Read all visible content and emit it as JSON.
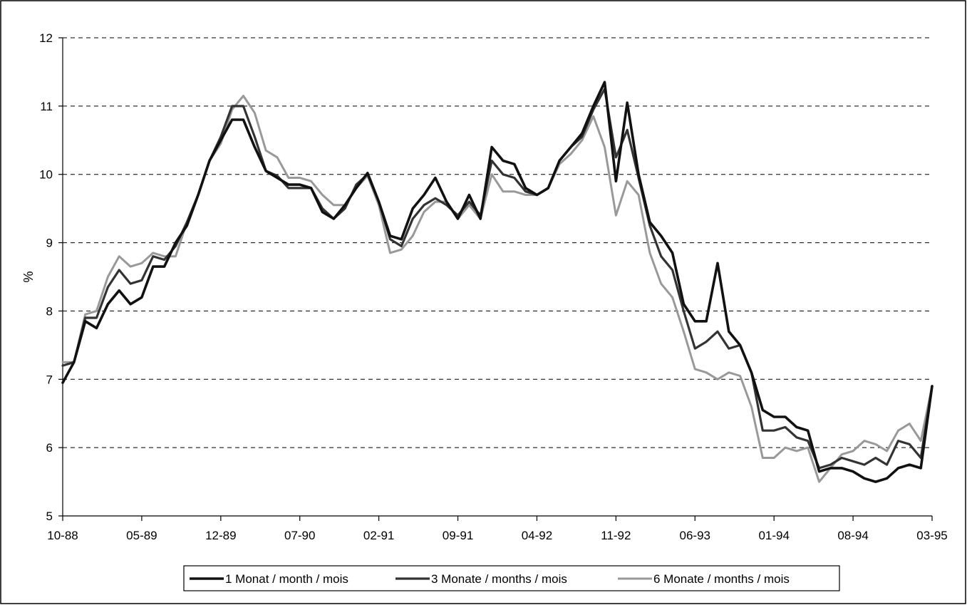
{
  "chart_data": {
    "type": "line",
    "title": "",
    "xlabel": "",
    "ylabel": "%",
    "ylim": [
      5,
      12
    ],
    "yticks": [
      5,
      6,
      7,
      8,
      9,
      10,
      11,
      12
    ],
    "grid": "horizontal dashed",
    "legend_position": "bottom-center",
    "x": [
      "10-88",
      "11-88",
      "12-88",
      "01-89",
      "02-89",
      "03-89",
      "04-89",
      "05-89",
      "06-89",
      "07-89",
      "08-89",
      "09-89",
      "10-89",
      "11-89",
      "12-89",
      "01-90",
      "02-90",
      "03-90",
      "04-90",
      "05-90",
      "06-90",
      "07-90",
      "08-90",
      "09-90",
      "10-90",
      "11-90",
      "12-90",
      "01-91",
      "02-91",
      "03-91",
      "04-91",
      "05-91",
      "06-91",
      "07-91",
      "08-91",
      "09-91",
      "10-91",
      "11-91",
      "12-91",
      "01-92",
      "02-92",
      "03-92",
      "04-92",
      "05-92",
      "06-92",
      "07-92",
      "08-92",
      "09-92",
      "10-92",
      "11-92",
      "12-92",
      "01-93",
      "02-93",
      "03-93",
      "04-93",
      "05-93",
      "06-93",
      "07-93",
      "08-93",
      "09-93",
      "10-93",
      "11-93",
      "12-93",
      "01-94",
      "02-94",
      "03-94",
      "04-94",
      "05-94",
      "06-94",
      "07-94",
      "08-94",
      "09-94",
      "10-94",
      "11-94",
      "12-94",
      "01-95",
      "02-95",
      "03-95"
    ],
    "x_tick_labels": [
      "10-88",
      "05-89",
      "12-89",
      "07-90",
      "02-91",
      "09-91",
      "04-92",
      "11-92",
      "06-93",
      "01-94",
      "08-94",
      "03-95"
    ],
    "series": [
      {
        "name": "1 Monat / month / mois",
        "color": "#111111",
        "values": [
          6.95,
          7.25,
          7.85,
          7.75,
          8.1,
          8.3,
          8.1,
          8.2,
          8.65,
          8.65,
          9.0,
          9.25,
          9.7,
          10.2,
          10.5,
          10.8,
          10.8,
          10.4,
          10.05,
          9.95,
          9.85,
          9.85,
          9.8,
          9.45,
          9.35,
          9.55,
          9.8,
          10.02,
          9.6,
          9.1,
          9.05,
          9.5,
          9.7,
          9.95,
          9.6,
          9.35,
          9.7,
          9.35,
          10.4,
          10.2,
          10.15,
          9.8,
          9.7,
          9.8,
          10.2,
          10.4,
          10.6,
          11.0,
          11.35,
          9.9,
          11.05,
          10.0,
          9.3,
          9.1,
          8.85,
          8.1,
          7.85,
          7.85,
          8.7,
          7.7,
          7.5,
          7.1,
          6.55,
          6.45,
          6.45,
          6.3,
          6.25,
          5.65,
          5.7,
          5.7,
          5.65,
          5.55,
          5.5,
          5.55,
          5.7,
          5.75,
          5.7,
          6.9
        ]
      },
      {
        "name": "3 Monate / months / mois",
        "color": "#333333",
        "values": [
          7.2,
          7.25,
          7.9,
          7.9,
          8.35,
          8.6,
          8.4,
          8.45,
          8.8,
          8.75,
          8.95,
          9.3,
          9.7,
          10.2,
          10.55,
          11.0,
          11.0,
          10.55,
          10.05,
          9.98,
          9.8,
          9.8,
          9.8,
          9.5,
          9.35,
          9.5,
          9.85,
          10.0,
          9.6,
          9.05,
          8.95,
          9.35,
          9.55,
          9.65,
          9.55,
          9.4,
          9.6,
          9.4,
          10.2,
          10.0,
          9.95,
          9.75,
          9.7,
          9.8,
          10.2,
          10.4,
          10.55,
          10.95,
          11.25,
          10.25,
          10.65,
          9.95,
          9.25,
          8.8,
          8.6,
          8.0,
          7.45,
          7.55,
          7.7,
          7.45,
          7.5,
          7.1,
          6.25,
          6.25,
          6.3,
          6.15,
          6.1,
          5.7,
          5.75,
          5.85,
          5.8,
          5.75,
          5.85,
          5.75,
          6.1,
          6.05,
          5.85,
          6.9
        ]
      },
      {
        "name": "6 Monate / months / mois",
        "color": "#999999",
        "values": [
          7.25,
          7.25,
          7.95,
          8.0,
          8.5,
          8.8,
          8.65,
          8.7,
          8.85,
          8.8,
          8.8,
          9.3,
          9.7,
          10.2,
          10.45,
          10.95,
          11.15,
          10.9,
          10.35,
          10.25,
          9.95,
          9.95,
          9.9,
          9.7,
          9.55,
          9.55,
          9.8,
          9.98,
          9.55,
          8.85,
          8.9,
          9.1,
          9.45,
          9.6,
          9.6,
          9.35,
          9.55,
          9.35,
          10.0,
          9.75,
          9.75,
          9.7,
          9.7,
          9.8,
          10.15,
          10.3,
          10.5,
          10.85,
          10.4,
          9.4,
          9.9,
          9.7,
          8.85,
          8.4,
          8.2,
          7.7,
          7.15,
          7.1,
          7.0,
          7.1,
          7.05,
          6.6,
          5.85,
          5.85,
          6.0,
          5.95,
          6.0,
          5.5,
          5.7,
          5.9,
          5.95,
          6.1,
          6.05,
          5.95,
          6.25,
          6.35,
          6.1,
          6.9
        ]
      }
    ]
  }
}
